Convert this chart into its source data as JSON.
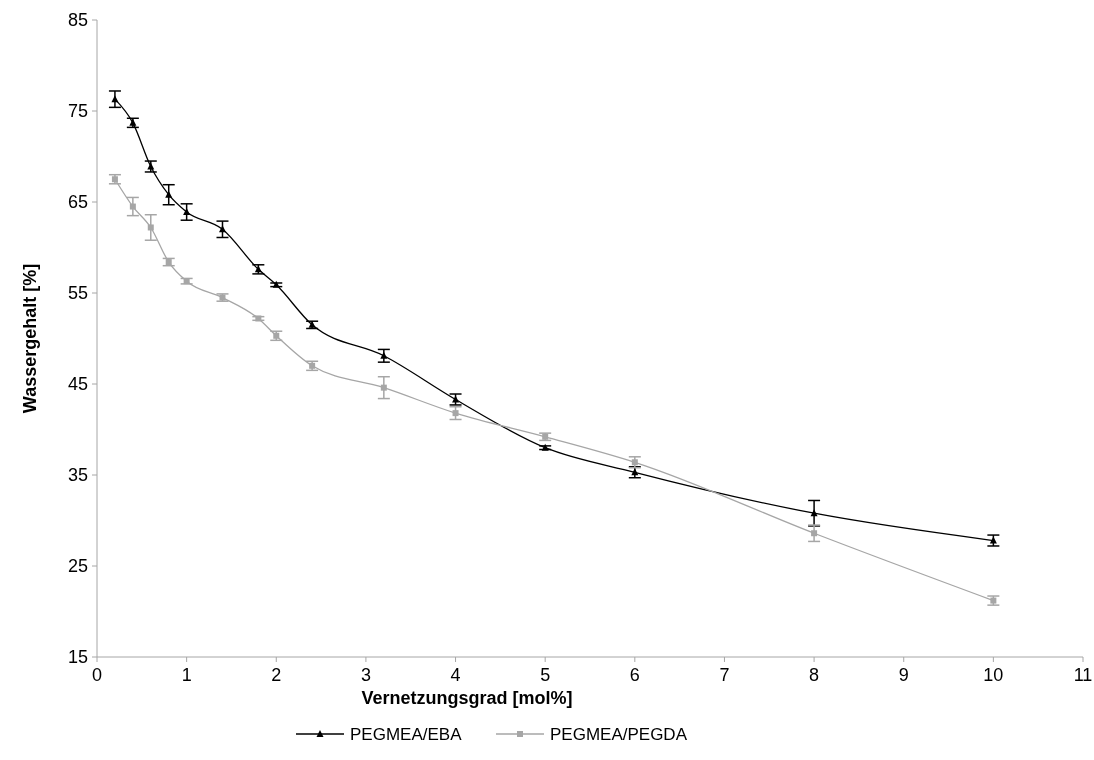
{
  "chart_data": {
    "type": "line",
    "xlabel": "Vernetzungsgrad [mol%]",
    "ylabel": "Wassergehalt [%]",
    "xlim": [
      0,
      11
    ],
    "xticks": [
      0,
      1,
      2,
      3,
      4,
      5,
      6,
      7,
      8,
      9,
      10,
      11
    ],
    "ylim": [
      15,
      85
    ],
    "yticks": [
      15,
      25,
      35,
      45,
      55,
      65,
      75,
      85
    ],
    "grid": false,
    "legend": "bottom",
    "series": [
      {
        "name": "PEGMEA/EBA",
        "color": "#000000",
        "marker": "triangle",
        "x": [
          0.2,
          0.4,
          0.6,
          0.8,
          1,
          1.4,
          1.8,
          2,
          2.4,
          3.2,
          4,
          5,
          6,
          8,
          10
        ],
        "values": [
          76.3,
          73.7,
          68.9,
          65.8,
          63.9,
          62.0,
          57.6,
          55.9,
          51.5,
          48.1,
          43.3,
          38.0,
          35.3,
          30.8,
          27.8
        ],
        "errors": [
          0.9,
          0.5,
          0.6,
          1.1,
          0.9,
          0.9,
          0.5,
          0.2,
          0.4,
          0.7,
          0.6,
          0.2,
          0.6,
          1.4,
          0.6
        ]
      },
      {
        "name": "PEGMEA/PEGDA",
        "color": "#a6a6a6",
        "marker": "square",
        "x": [
          0.2,
          0.4,
          0.6,
          0.8,
          1,
          1.4,
          1.8,
          2,
          2.4,
          3.2,
          4,
          5,
          6,
          8,
          10
        ],
        "values": [
          67.5,
          64.5,
          62.2,
          58.4,
          56.3,
          54.5,
          52.2,
          50.3,
          47.0,
          44.6,
          41.8,
          39.2,
          36.4,
          28.6,
          21.2
        ],
        "errors": [
          0.5,
          1.0,
          1.4,
          0.4,
          0.3,
          0.4,
          0.2,
          0.5,
          0.5,
          1.2,
          0.7,
          0.4,
          0.6,
          0.9,
          0.5
        ]
      }
    ]
  }
}
